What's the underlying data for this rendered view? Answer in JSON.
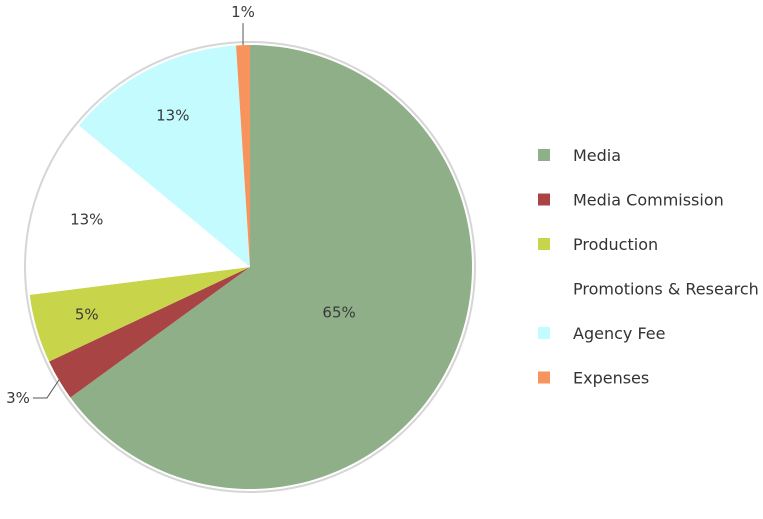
{
  "chart_data": {
    "type": "pie",
    "title": "",
    "legend_position": "right",
    "slices": [
      {
        "name": "Media",
        "value": 65,
        "label": "65%",
        "color": "#8faf88"
      },
      {
        "name": "Media Commission",
        "value": 3,
        "label": "3%",
        "color": "#a94444"
      },
      {
        "name": "Production",
        "value": 5,
        "label": "5%",
        "color": "#c8d44a"
      },
      {
        "name": "Promotions & Research",
        "value": 13,
        "label": "13%",
        "color": "#ffffff"
      },
      {
        "name": "Agency Fee",
        "value": 13,
        "label": "13%",
        "color": "#c4fbff"
      },
      {
        "name": "Expenses",
        "value": 1,
        "label": "1%",
        "color": "#f7935c"
      }
    ]
  }
}
